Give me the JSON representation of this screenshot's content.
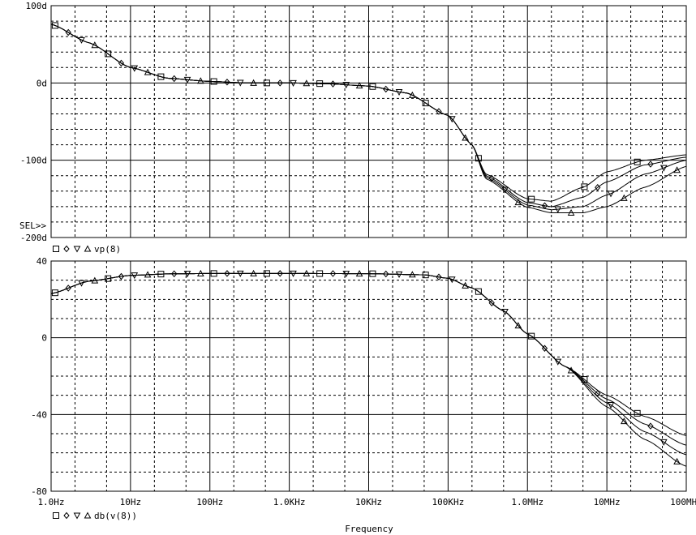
{
  "chart_data": [
    {
      "type": "line",
      "xscale": "log",
      "xlim": [
        1,
        100000000
      ],
      "ylim": [
        -200,
        100
      ],
      "grid": true,
      "yticks": [
        100,
        0,
        -100,
        -200
      ],
      "ytick_labels": [
        "100d",
        "0d",
        "-100d",
        "-200d"
      ],
      "sel_label": "SEL>>",
      "legend": {
        "markers": [
          "square",
          "diamond",
          "triangle-down",
          "triangle-up"
        ],
        "label": "vp(8)"
      },
      "series": [
        {
          "marker": "square",
          "x": [
            1,
            3,
            10,
            30,
            100,
            300,
            1000,
            3000,
            10000,
            30000,
            100000,
            200000,
            300000,
            1000000,
            2000000,
            5000000,
            10000000,
            30000000,
            100000000
          ],
          "y": [
            76,
            52,
            20,
            6,
            2,
            0,
            0,
            -1,
            -4,
            -13,
            -42,
            -80,
            -118,
            -150,
            -153,
            -135,
            -115,
            -100,
            -93
          ]
        },
        {
          "marker": "diamond",
          "x": [
            1,
            3,
            10,
            30,
            100,
            300,
            1000,
            3000,
            10000,
            30000,
            100000,
            200000,
            300000,
            1000000,
            2000000,
            5000000,
            10000000,
            30000000,
            100000000
          ],
          "y": [
            76,
            52,
            20,
            6,
            2,
            0,
            0,
            -1,
            -4,
            -13,
            -42,
            -80,
            -120,
            -155,
            -160,
            -148,
            -128,
            -106,
            -96
          ]
        },
        {
          "marker": "triangle-down",
          "x": [
            1,
            3,
            10,
            30,
            100,
            300,
            1000,
            3000,
            10000,
            30000,
            100000,
            200000,
            300000,
            1000000,
            2000000,
            5000000,
            10000000,
            30000000,
            100000000
          ],
          "y": [
            76,
            52,
            20,
            6,
            2,
            0,
            0,
            -1,
            -4,
            -13,
            -42,
            -80,
            -122,
            -158,
            -164,
            -160,
            -145,
            -118,
            -100
          ]
        },
        {
          "marker": "triangle-up",
          "x": [
            1,
            3,
            10,
            30,
            100,
            300,
            1000,
            3000,
            10000,
            30000,
            100000,
            200000,
            300000,
            1000000,
            2000000,
            5000000,
            10000000,
            30000000,
            100000000
          ],
          "y": [
            76,
            52,
            20,
            6,
            2,
            0,
            0,
            -1,
            -4,
            -13,
            -42,
            -80,
            -124,
            -161,
            -168,
            -168,
            -160,
            -135,
            -108
          ]
        }
      ]
    },
    {
      "type": "line",
      "xscale": "log",
      "xlim": [
        1,
        100000000
      ],
      "ylim": [
        -80,
        40
      ],
      "grid": true,
      "yticks": [
        40,
        0,
        -40,
        -80
      ],
      "ytick_labels": [
        "40",
        "0",
        "-40",
        "-80"
      ],
      "xticks": [
        1,
        10,
        100,
        1000,
        10000,
        100000,
        1000000,
        10000000,
        100000000
      ],
      "xtick_labels": [
        "1.0Hz",
        "10Hz",
        "100Hz",
        "1.0KHz",
        "10KHz",
        "100KHz",
        "1.0MHz",
        "10MHz",
        "100MHz"
      ],
      "xlabel": "Frequency",
      "legend": {
        "markers": [
          "square",
          "diamond",
          "triangle-down",
          "triangle-up"
        ],
        "label": "db(v(8))"
      },
      "series": [
        {
          "marker": "square",
          "x": [
            1,
            3,
            10,
            30,
            100,
            1000,
            10000,
            50000,
            100000,
            200000,
            500000,
            1000000,
            3000000,
            10000000,
            30000000,
            100000000
          ],
          "y": [
            23,
            29.5,
            32.5,
            33.3,
            33.5,
            33.5,
            33.4,
            32.8,
            31,
            26,
            14,
            2,
            -15,
            -30,
            -41,
            -51
          ]
        },
        {
          "marker": "diamond",
          "x": [
            1,
            3,
            10,
            30,
            100,
            1000,
            10000,
            50000,
            100000,
            200000,
            500000,
            1000000,
            3000000,
            10000000,
            30000000,
            100000000
          ],
          "y": [
            23,
            29.5,
            32.5,
            33.3,
            33.5,
            33.5,
            33.4,
            32.8,
            31,
            26,
            14,
            2,
            -15,
            -32,
            -45,
            -56
          ]
        },
        {
          "marker": "triangle-down",
          "x": [
            1,
            3,
            10,
            30,
            100,
            1000,
            10000,
            50000,
            100000,
            200000,
            500000,
            1000000,
            3000000,
            10000000,
            30000000,
            100000000
          ],
          "y": [
            23,
            29.5,
            32.5,
            33.3,
            33.5,
            33.5,
            33.4,
            32.8,
            31,
            26,
            14,
            2,
            -15,
            -34,
            -49,
            -61
          ]
        },
        {
          "marker": "triangle-up",
          "x": [
            1,
            3,
            10,
            30,
            100,
            1000,
            10000,
            50000,
            100000,
            200000,
            500000,
            1000000,
            3000000,
            10000000,
            30000000,
            100000000
          ],
          "y": [
            23,
            29.5,
            32.5,
            33.3,
            33.5,
            33.5,
            33.4,
            32.8,
            31,
            26,
            14,
            2,
            -15,
            -36,
            -53,
            -67
          ]
        }
      ]
    }
  ]
}
